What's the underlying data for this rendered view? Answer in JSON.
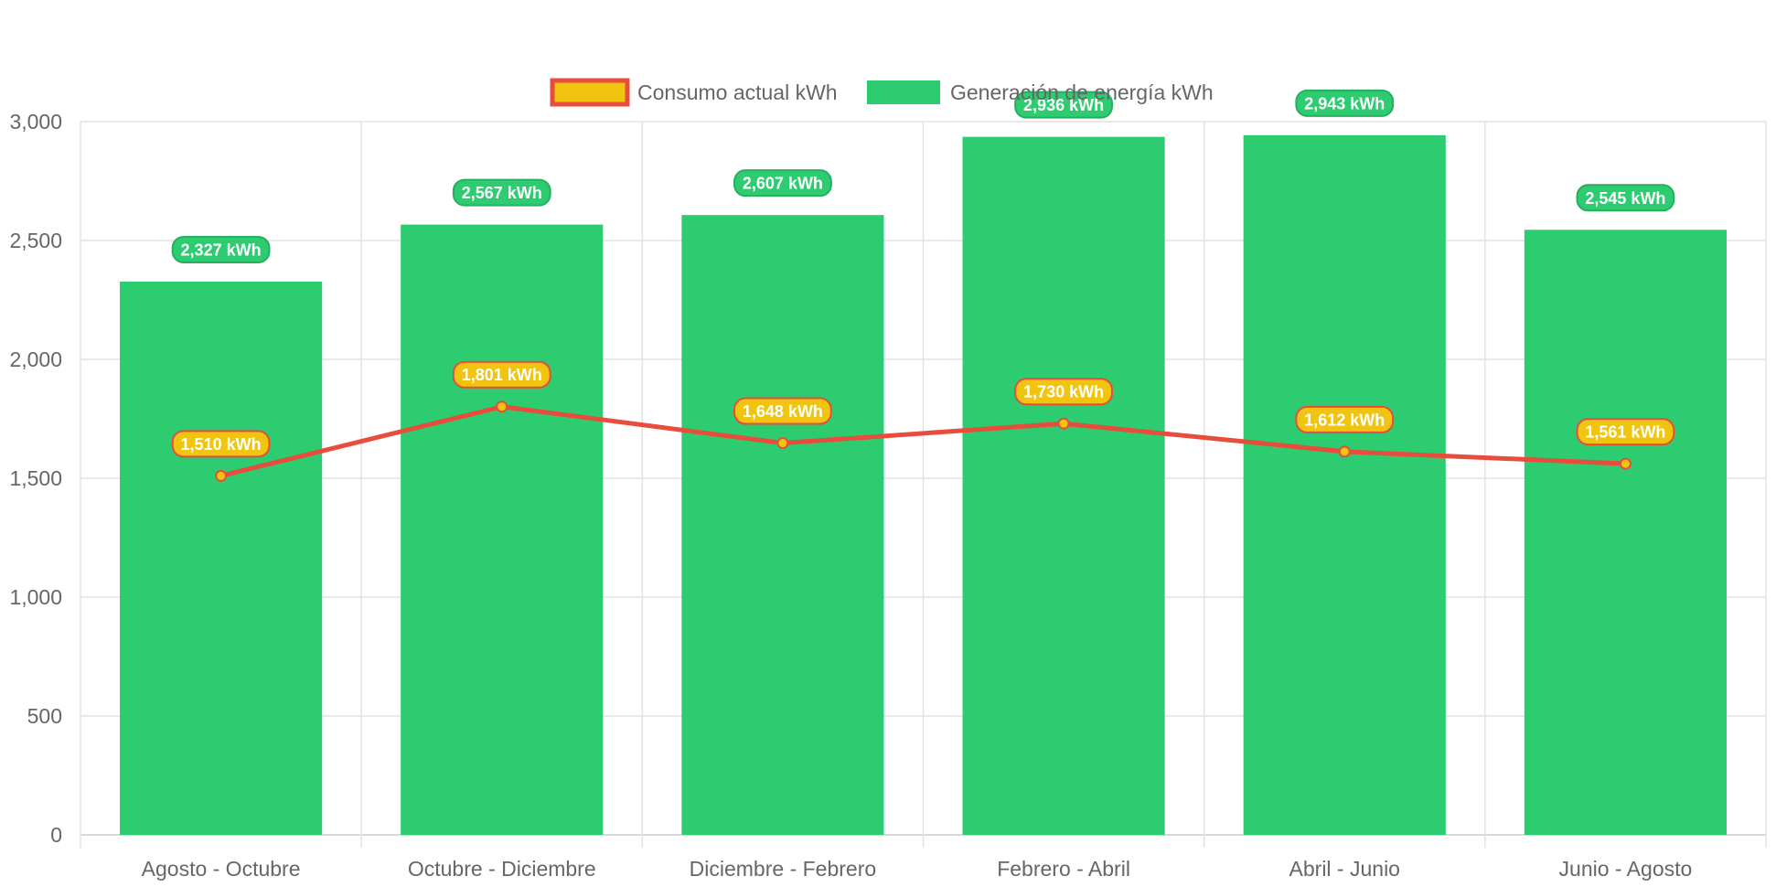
{
  "chart_data": {
    "type": "bar",
    "title": "",
    "xlabel": "",
    "ylabel": "",
    "ylim": [
      0,
      3000
    ],
    "yticks": [
      0,
      500,
      1000,
      1500,
      2000,
      2500,
      3000
    ],
    "ytick_labels": [
      "0",
      "500",
      "1,000",
      "1,500",
      "2,000",
      "2,500",
      "3,000"
    ],
    "grid": true,
    "legend_position": "top-center",
    "categories": [
      "Agosto - Octubre",
      "Octubre - Diciembre",
      "Diciembre - Febrero",
      "Febrero - Abril",
      "Abril - Junio",
      "Junio - Agosto"
    ],
    "series": [
      {
        "name": "Consumo actual kWh",
        "type": "line",
        "color": "#e74c3c",
        "fill_color": "#f1c40f",
        "values": [
          1510,
          1801,
          1648,
          1730,
          1612,
          1561
        ],
        "labels": [
          "1,510 kWh",
          "1,801 kWh",
          "1,648 kWh",
          "1,730 kWh",
          "1,612 kWh",
          "1,561 kWh"
        ]
      },
      {
        "name": "Generación de energía kWh",
        "type": "bar",
        "color": "#2ecc71",
        "label_bg": "#27ae60",
        "values": [
          2327,
          2567,
          2607,
          2936,
          2943,
          2545
        ],
        "labels": [
          "2,327 kWh",
          "2,567 kWh",
          "2,607 kWh",
          "2,936 kWh",
          "2,943 kWh",
          "2,545 kWh"
        ]
      }
    ]
  }
}
